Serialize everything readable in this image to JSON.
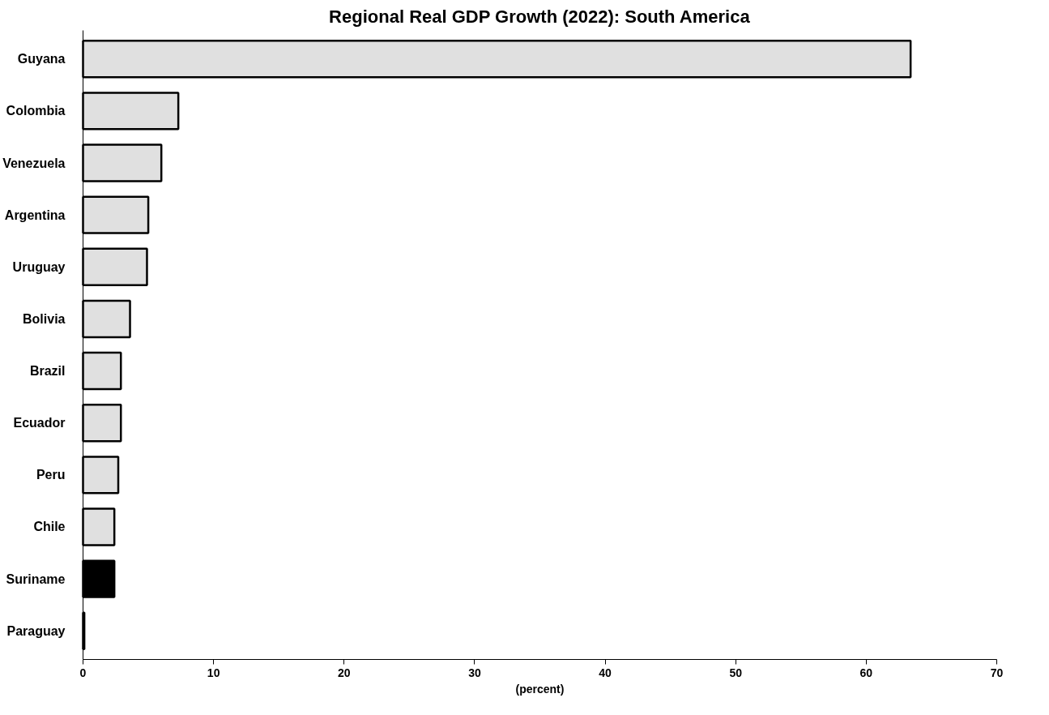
{
  "chart_data": {
    "type": "bar",
    "orientation": "horizontal",
    "title": "Regional Real GDP Growth (2022): South America",
    "xlabel": "(percent)",
    "categories": [
      "Guyana",
      "Colombia",
      "Venezuela",
      "Argentina",
      "Uruguay",
      "Bolivia",
      "Brazil",
      "Ecuador",
      "Peru",
      "Chile",
      "Suriname",
      "Paraguay"
    ],
    "values": [
      63.4,
      7.3,
      6.0,
      5.0,
      4.9,
      3.6,
      2.9,
      2.9,
      2.7,
      2.4,
      2.4,
      0.1
    ],
    "colors": [
      "#e0e0e0",
      "#e0e0e0",
      "#e0e0e0",
      "#e0e0e0",
      "#e0e0e0",
      "#e0e0e0",
      "#e0e0e0",
      "#e0e0e0",
      "#e0e0e0",
      "#e0e0e0",
      "#000000",
      "#e0e0e0"
    ],
    "xlim": [
      0,
      70
    ],
    "xticks": [
      0,
      10,
      20,
      30,
      40,
      50,
      60,
      70
    ],
    "grid": false
  }
}
